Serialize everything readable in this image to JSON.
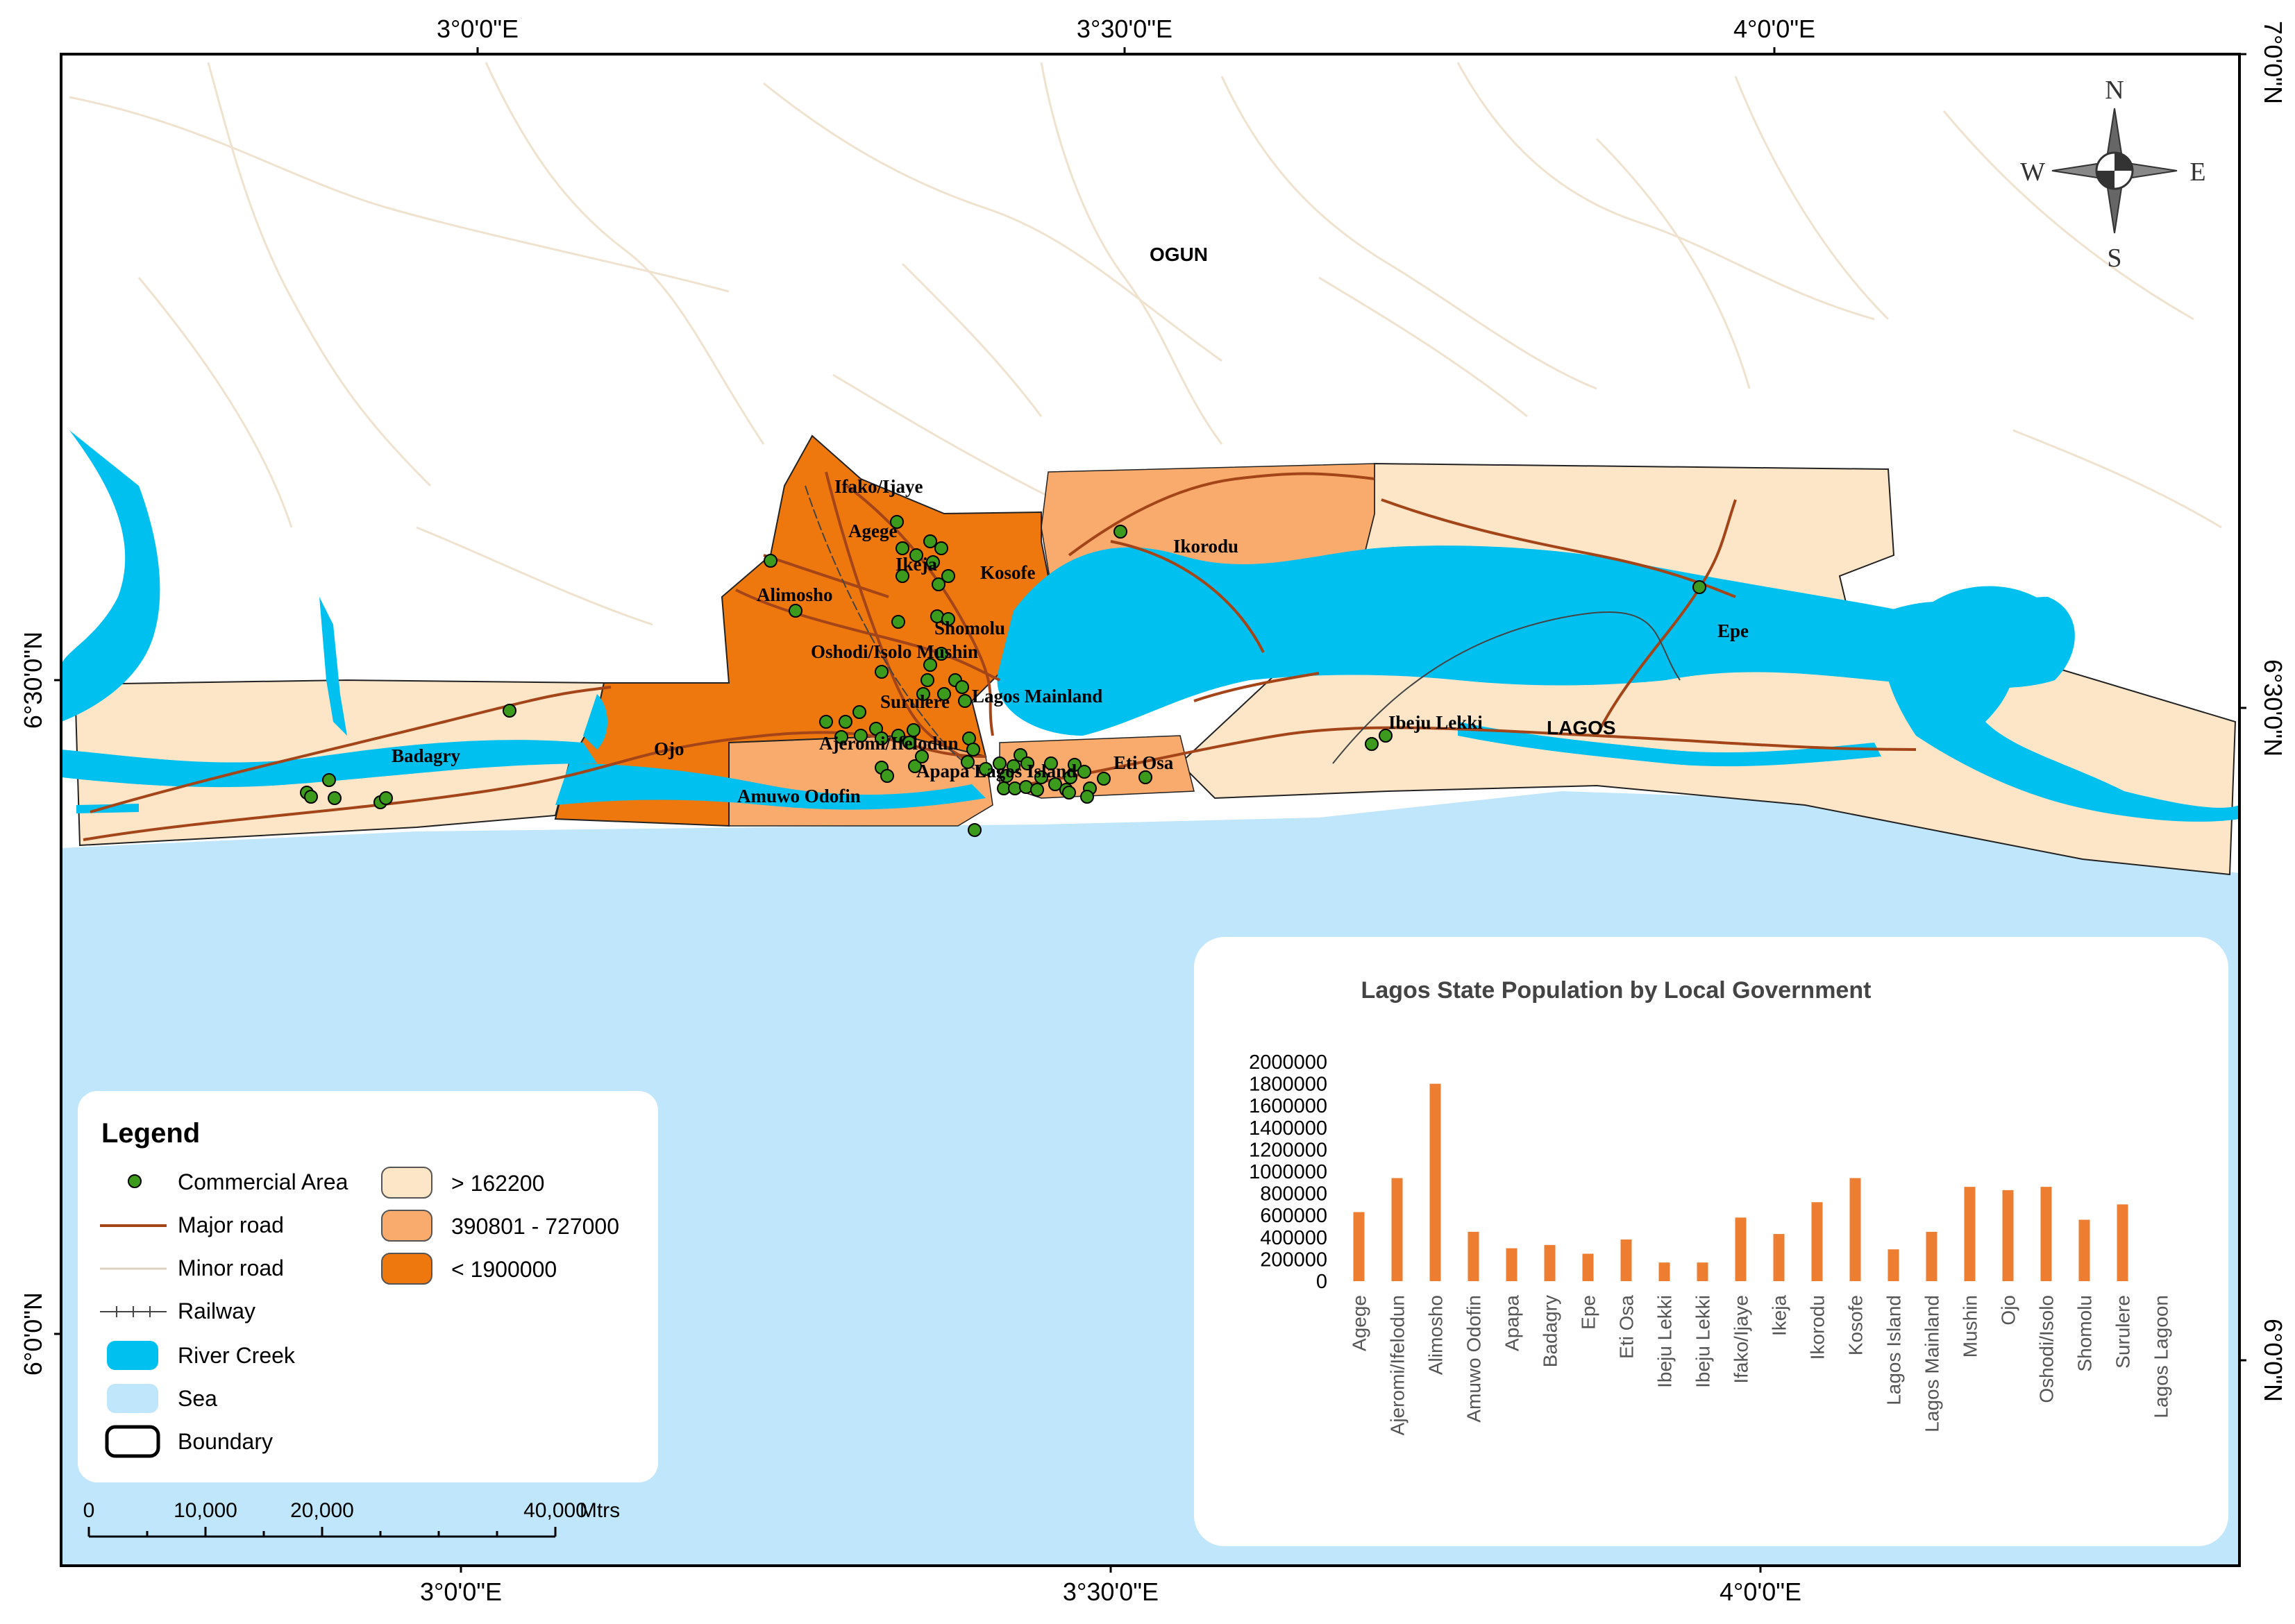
{
  "graticule": {
    "top_labels": [
      "3°0'0\"E",
      "3°30'0\"E",
      "4°0'0\"E"
    ],
    "bottom_labels": [
      "3°0'0\"E",
      "3°30'0\"E",
      "4°0'0\"E"
    ],
    "left_labels": [
      "6°30'0\"N",
      "6°0'0\"N"
    ],
    "right_labels": [
      "7°0'0\"N",
      "6°30'0\"N",
      "6°0'0\"N"
    ]
  },
  "compass": {
    "n": "N",
    "s": "S",
    "e": "E",
    "w": "W"
  },
  "place_labels": {
    "ogun": "OGUN",
    "lagos": "LAGOS",
    "ifako": "Ifako/Ijaye",
    "agege": "Agege",
    "ikeja": "Ikeja",
    "kosofe": "Kosofe",
    "alimosho": "Alimosho",
    "shomolu": "Shomolu",
    "oshodi_mushin": "Oshodi/Isolo Mushin",
    "surulere": "Surulere",
    "lagos_mainland": "Lagos Mainland",
    "ajeromi": "Ajeromi/Ifelodun",
    "apapa_island": "Apapa Lagos Island",
    "eti_osa": "Eti Osa",
    "ojo": "Ojo",
    "amuwo": "Amuwo Odofin",
    "badagry": "Badagry",
    "ikorodu": "Ikorodu",
    "ibeju": "Ibeju Lekki",
    "epe": "Epe"
  },
  "legend": {
    "title": "Legend",
    "items": [
      {
        "label": "Commercial Area",
        "symbol": "point"
      },
      {
        "label": "Major road",
        "symbol": "major-road"
      },
      {
        "label": "Minor road",
        "symbol": "minor-road"
      },
      {
        "label": "Railway",
        "symbol": "railway"
      },
      {
        "label": "River Creek",
        "symbol": "river"
      },
      {
        "label": "Sea",
        "symbol": "sea"
      },
      {
        "label": "Boundary",
        "symbol": "boundary"
      }
    ],
    "classes": [
      {
        "label": "> 162200",
        "color": "#fde6c8"
      },
      {
        "label": "390801 - 727000",
        "color": "#f9ab6e"
      },
      {
        "label": "< 1900000",
        "color": "#ef780e"
      }
    ]
  },
  "scale_bar": {
    "labels": [
      "0",
      "10,000",
      "20,000",
      "40,000"
    ],
    "unit": "Mtrs"
  },
  "colors": {
    "low": "#fde6c8",
    "mid": "#f9ab6e",
    "high": "#ef780e",
    "river": "#00c0f0",
    "sea": "#bfe6fb",
    "major_road": "#a34519",
    "minor_road": "#efe3cf",
    "commercial": "#3c9a1c",
    "bar": "#ed7d31"
  },
  "chart_data": {
    "type": "bar",
    "title": "Lagos State Population by Local Government",
    "categories": [
      "Agege",
      "Ajeromi/Ifelodun",
      "Alimosho",
      "Amuwo Odofin",
      "Apapa",
      "Badagry",
      "Epe",
      "Eti Osa",
      "Ibeju Lekki",
      "Ibeju Lekki",
      "Ifako/Ijaye",
      "Ikeja",
      "Ikorodu",
      "Kosofe",
      "Lagos Island",
      "Lagos Mainland",
      "Mushin",
      "Ojo",
      "Oshodi/Isolo",
      "Shomolu",
      "Surulere",
      "Lagos Lagoon"
    ],
    "values": [
      630000,
      940000,
      1800000,
      450000,
      300000,
      330000,
      250000,
      380000,
      170000,
      170000,
      580000,
      430000,
      720000,
      940000,
      290000,
      450000,
      860000,
      830000,
      860000,
      560000,
      700000,
      0
    ],
    "yticks": [
      "0",
      "200000",
      "400000",
      "600000",
      "800000",
      "1000000",
      "1200000",
      "1400000",
      "1600000",
      "1800000",
      "2000000"
    ],
    "ylim": [
      0,
      2000000
    ],
    "xlabel": "",
    "ylabel": ""
  }
}
